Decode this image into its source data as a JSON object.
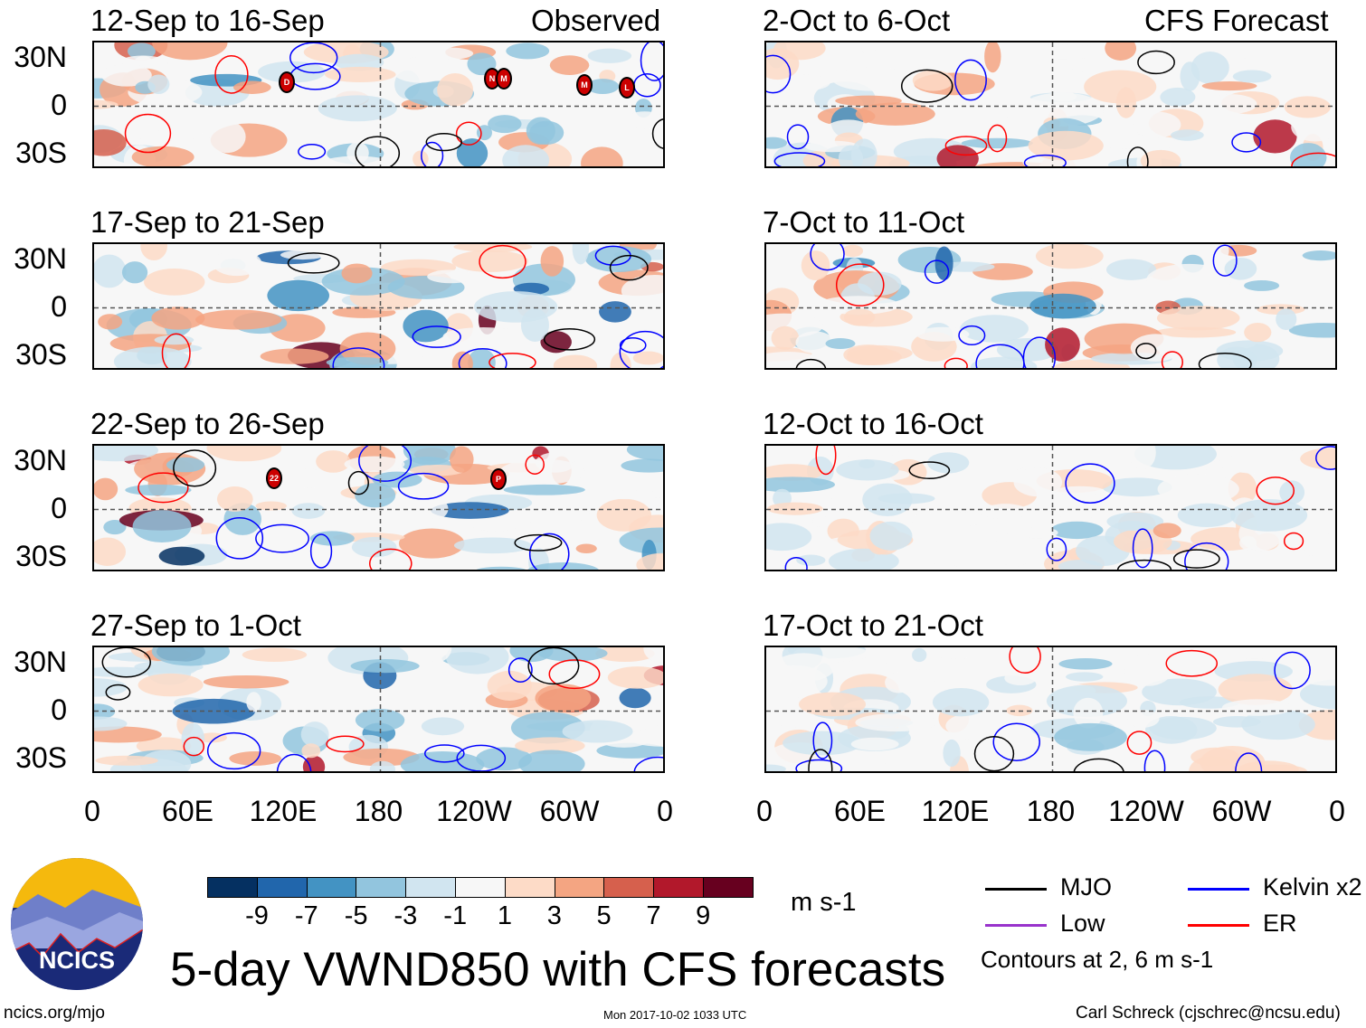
{
  "chart_data": {
    "type": "heatmap",
    "title": "5-day VWND850 with CFS forecasts",
    "units": "m s-1",
    "columns": [
      {
        "label": "Observed",
        "panels": [
          "12-Sep to 16-Sep",
          "17-Sep to 21-Sep",
          "22-Sep to 26-Sep",
          "27-Sep to 1-Oct"
        ]
      },
      {
        "label": "CFS Forecast",
        "panels": [
          "2-Oct to 6-Oct",
          "7-Oct to 11-Oct",
          "12-Oct to 16-Oct",
          "17-Oct to 21-Oct"
        ]
      }
    ],
    "lat_ticks": [
      "30N",
      "0",
      "30S"
    ],
    "lon_ticks": [
      "0",
      "60E",
      "120E",
      "180",
      "120W",
      "60W",
      "0"
    ],
    "colorbar": {
      "labels": [
        "-9",
        "-7",
        "-5",
        "-3",
        "-1",
        "1",
        "3",
        "5",
        "7",
        "9"
      ],
      "colors": [
        "#053061",
        "#2166ac",
        "#4393c3",
        "#92c5de",
        "#d1e5f0",
        "#f7f7f7",
        "#fddbc7",
        "#f4a582",
        "#d6604d",
        "#b2182b",
        "#67001f"
      ]
    },
    "legend": [
      {
        "name": "MJO",
        "color": "#000000"
      },
      {
        "name": "Kelvin x2",
        "color": "#0000ff"
      },
      {
        "name": "Low",
        "color": "#9933cc"
      },
      {
        "name": "ER",
        "color": "#ff0000"
      }
    ],
    "contour_note": "Contours at 2, 6 m s-1",
    "storms": [
      {
        "panel": 0,
        "label": "D"
      },
      {
        "panel": 0,
        "label": "N"
      },
      {
        "panel": 0,
        "label": "M"
      },
      {
        "panel": 0,
        "label": "M"
      },
      {
        "panel": 0,
        "label": "L"
      },
      {
        "panel": 2,
        "label": "22"
      },
      {
        "panel": 2,
        "label": "P"
      }
    ]
  },
  "footer": {
    "logo_text": "NCICS",
    "url": "ncics.org/mjo",
    "timestamp": "Mon 2017-10-02 1033 UTC",
    "author": "Carl Schreck (cjschrec@ncsu.edu)"
  }
}
